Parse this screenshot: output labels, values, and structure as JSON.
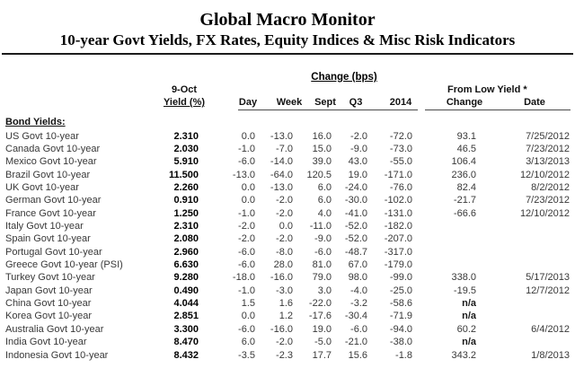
{
  "header": {
    "title": "Global Macro Monitor",
    "subtitle": "10-year Govt Yields, FX Rates, Equity Indices & Misc Risk Indicators"
  },
  "table": {
    "change_group_label": "Change (bps)",
    "from_low_group_label": "From Low Yield *",
    "yield_date_label": "9-Oct",
    "yield_unit_label": "Yield (%)",
    "columns": [
      "Day",
      "Week",
      "Sept",
      "Q3",
      "2014",
      "Change",
      "Date"
    ],
    "section_label": "Bond Yields:",
    "rows": [
      {
        "name": "US Govt 10-year",
        "yield": "2.310",
        "day": "0.0",
        "week": "-13.0",
        "sept": "16.0",
        "q3": "-2.0",
        "y2014": "-72.0",
        "change": "93.1",
        "date": "7/25/2012"
      },
      {
        "name": "Canada Govt 10-year",
        "yield": "2.030",
        "day": "-1.0",
        "week": "-7.0",
        "sept": "15.0",
        "q3": "-9.0",
        "y2014": "-73.0",
        "change": "46.5",
        "date": "7/23/2012"
      },
      {
        "name": "Mexico Govt 10-year",
        "yield": "5.910",
        "day": "-6.0",
        "week": "-14.0",
        "sept": "39.0",
        "q3": "43.0",
        "y2014": "-55.0",
        "change": "106.4",
        "date": "3/13/2013"
      },
      {
        "name": "Brazil Govt 10-year",
        "yield": "11.500",
        "day": "-13.0",
        "week": "-64.0",
        "sept": "120.5",
        "q3": "19.0",
        "y2014": "-171.0",
        "change": "236.0",
        "date": "12/10/2012"
      },
      {
        "name": "UK Govt 10-year",
        "yield": "2.260",
        "day": "0.0",
        "week": "-13.0",
        "sept": "6.0",
        "q3": "-24.0",
        "y2014": "-76.0",
        "change": "82.4",
        "date": "8/2/2012"
      },
      {
        "name": "German Govt 10-year",
        "yield": "0.910",
        "day": "0.0",
        "week": "-2.0",
        "sept": "6.0",
        "q3": "-30.0",
        "y2014": "-102.0",
        "change": "-21.7",
        "date": "7/23/2012"
      },
      {
        "name": "France Govt 10-year",
        "yield": "1.250",
        "day": "-1.0",
        "week": "-2.0",
        "sept": "4.0",
        "q3": "-41.0",
        "y2014": "-131.0",
        "change": "-66.6",
        "date": "12/10/2012"
      },
      {
        "name": "Italy Govt 10-year",
        "yield": "2.310",
        "day": "-2.0",
        "week": "0.0",
        "sept": "-11.0",
        "q3": "-52.0",
        "y2014": "-182.0",
        "change": "",
        "date": ""
      },
      {
        "name": "Spain Govt 10-year",
        "yield": "2.080",
        "day": "-2.0",
        "week": "-2.0",
        "sept": "-9.0",
        "q3": "-52.0",
        "y2014": "-207.0",
        "change": "",
        "date": ""
      },
      {
        "name": "Portugal Govt 10-year",
        "yield": "2.960",
        "day": "-6.0",
        "week": "-8.0",
        "sept": "-6.0",
        "q3": "-48.7",
        "y2014": "-317.0",
        "change": "",
        "date": ""
      },
      {
        "name": "Greece Govt 10-year (PSI)",
        "yield": "6.630",
        "day": "-6.0",
        "week": "28.0",
        "sept": "81.0",
        "q3": "67.0",
        "y2014": "-179.0",
        "change": "",
        "date": ""
      },
      {
        "name": "Turkey Govt 10-year",
        "yield": "9.280",
        "day": "-18.0",
        "week": "-16.0",
        "sept": "79.0",
        "q3": "98.0",
        "y2014": "-99.0",
        "change": "338.0",
        "date": "5/17/2013"
      },
      {
        "name": "Japan Govt 10-year",
        "yield": "0.490",
        "day": "-1.0",
        "week": "-3.0",
        "sept": "3.0",
        "q3": "-4.0",
        "y2014": "-25.0",
        "change": "-19.5",
        "date": "12/7/2012"
      },
      {
        "name": "China Govt 10-year",
        "yield": "4.044",
        "day": "1.5",
        "week": "1.6",
        "sept": "-22.0",
        "q3": "-3.2",
        "y2014": "-58.6",
        "change": "n/a",
        "date": ""
      },
      {
        "name": "Korea Govt 10-year",
        "yield": "2.851",
        "day": "0.0",
        "week": "1.2",
        "sept": "-17.6",
        "q3": "-30.4",
        "y2014": "-71.9",
        "change": "n/a",
        "date": ""
      },
      {
        "name": "Australia Govt 10-year",
        "yield": "3.300",
        "day": "-6.0",
        "week": "-16.0",
        "sept": "19.0",
        "q3": "-6.0",
        "y2014": "-94.0",
        "change": "60.2",
        "date": "6/4/2012"
      },
      {
        "name": "India Govt 10-year",
        "yield": "8.470",
        "day": "6.0",
        "week": "-2.0",
        "sept": "-5.0",
        "q3": "-21.0",
        "y2014": "-38.0",
        "change": "n/a",
        "date": ""
      },
      {
        "name": "Indonesia Govt 10-year",
        "yield": "8.432",
        "day": "-3.5",
        "week": "-2.3",
        "sept": "17.7",
        "q3": "15.6",
        "y2014": "-1.8",
        "change": "343.2",
        "date": "1/8/2013"
      }
    ]
  }
}
